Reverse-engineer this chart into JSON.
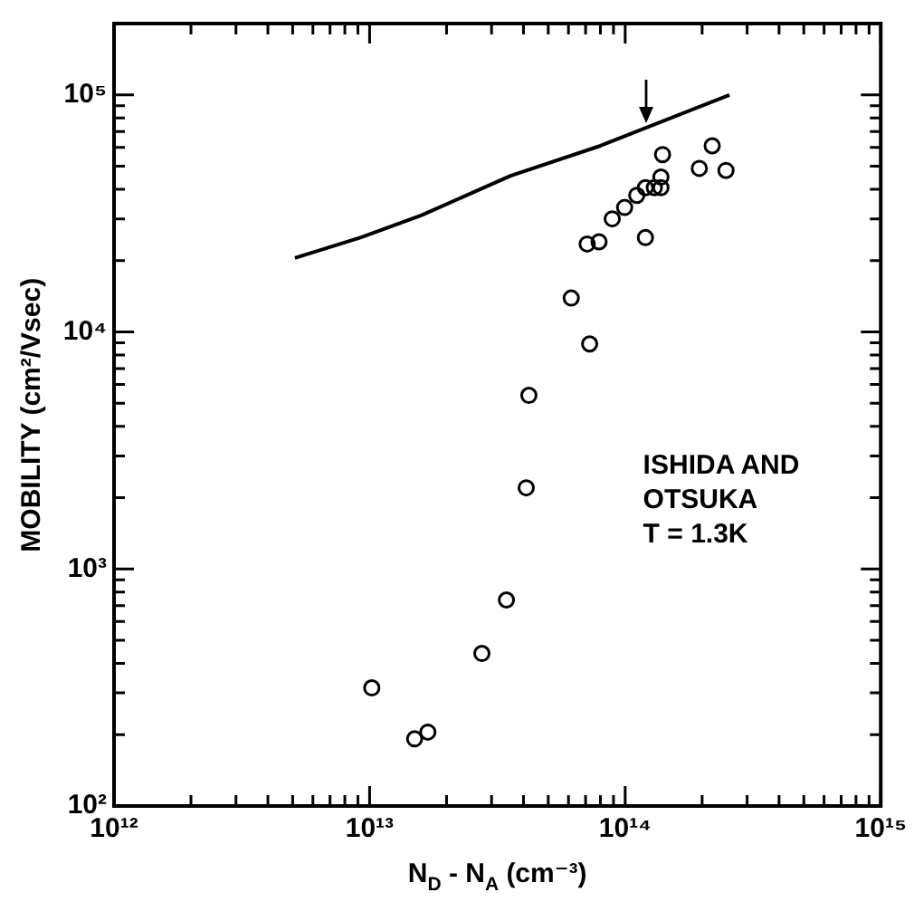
{
  "chart_data": {
    "type": "scatter",
    "xlabel": "N$_{D}$ - N$_{A}$ (cm⁻³)",
    "ylabel": "MOBILITY (cm²/Vsec)",
    "log": "xy",
    "grid": false,
    "legend": false,
    "xlim": [
      1000000000000.0,
      1000000000000000.0
    ],
    "ylim": [
      100,
      200000
    ],
    "xticks": [
      {
        "value": 1000000000000.0,
        "label": "10¹²"
      },
      {
        "value": 2000000000000.0,
        "label": null
      },
      {
        "value": 3000000000000.0,
        "label": null
      },
      {
        "value": 4000000000000.0,
        "label": null
      },
      {
        "value": 5000000000000.0,
        "label": null
      },
      {
        "value": 6000000000000.0,
        "label": null
      },
      {
        "value": 7000000000000.0,
        "label": null
      },
      {
        "value": 8000000000000.0,
        "label": null
      },
      {
        "value": 9000000000000.0,
        "label": null
      },
      {
        "value": 10000000000000.0,
        "label": "10¹³"
      },
      {
        "value": 20000000000000.0,
        "label": null
      },
      {
        "value": 30000000000000.0,
        "label": null
      },
      {
        "value": 40000000000000.0,
        "label": null
      },
      {
        "value": 50000000000000.0,
        "label": null
      },
      {
        "value": 60000000000000.0,
        "label": null
      },
      {
        "value": 70000000000000.0,
        "label": null
      },
      {
        "value": 80000000000000.0,
        "label": null
      },
      {
        "value": 90000000000000.0,
        "label": null
      },
      {
        "value": 100000000000000.0,
        "label": "10¹⁴"
      },
      {
        "value": 200000000000000.0,
        "label": null
      },
      {
        "value": 300000000000000.0,
        "label": null
      },
      {
        "value": 400000000000000.0,
        "label": null
      },
      {
        "value": 500000000000000.0,
        "label": null
      },
      {
        "value": 600000000000000.0,
        "label": null
      },
      {
        "value": 700000000000000.0,
        "label": null
      },
      {
        "value": 800000000000000.0,
        "label": null
      },
      {
        "value": 900000000000000.0,
        "label": null
      },
      {
        "value": 1000000000000000.0,
        "label": "10¹⁵"
      }
    ],
    "yticks": [
      {
        "value": 100,
        "label": "10²"
      },
      {
        "value": 200,
        "label": null
      },
      {
        "value": 300,
        "label": null
      },
      {
        "value": 400,
        "label": null
      },
      {
        "value": 500,
        "label": null
      },
      {
        "value": 600,
        "label": null
      },
      {
        "value": 700,
        "label": null
      },
      {
        "value": 800,
        "label": null
      },
      {
        "value": 900,
        "label": null
      },
      {
        "value": 1000,
        "label": "10³"
      },
      {
        "value": 2000,
        "label": null
      },
      {
        "value": 3000,
        "label": null
      },
      {
        "value": 4000,
        "label": null
      },
      {
        "value": 5000,
        "label": null
      },
      {
        "value": 6000,
        "label": null
      },
      {
        "value": 7000,
        "label": null
      },
      {
        "value": 8000,
        "label": null
      },
      {
        "value": 9000,
        "label": null
      },
      {
        "value": 10000,
        "label": "10⁴"
      },
      {
        "value": 20000,
        "label": null
      },
      {
        "value": 30000,
        "label": null
      },
      {
        "value": 40000,
        "label": null
      },
      {
        "value": 50000,
        "label": null
      },
      {
        "value": 60000,
        "label": null
      },
      {
        "value": 70000,
        "label": null
      },
      {
        "value": 80000,
        "label": null
      },
      {
        "value": 90000,
        "label": null
      },
      {
        "value": 100000,
        "label": "10⁵"
      }
    ],
    "annotations": [
      "ISHIDA AND\nOTSUKA\nT = 1.3K"
    ],
    "series": [
      {
        "type": "line",
        "color": "#000000",
        "marker": "none",
        "x": [
          5100000000000.0,
          9200000000000.0,
          15900000000000.0,
          35600000000000.0,
          80000000000000.0,
          256000000000000.0
        ],
        "values": [
          20500,
          25000,
          31000,
          45600,
          61000,
          100000
        ]
      },
      {
        "color": "#000000",
        "marker": "circle",
        "x": [
          42000000000000.0,
          61500000000000.0,
          72600000000000.0,
          71000000000000.0,
          79000000000000.0,
          89000000000000.0,
          99500000000000.0,
          111000000000000.0,
          120000000000000.0,
          130000000000000.0,
          138000000000000.0,
          138000000000000.0,
          140000000000000.0,
          120000000000000.0,
          195000000000000.0,
          219000000000000.0,
          248000000000000.0,
          41000000000000.0,
          34300000000000.0,
          27500000000000.0,
          10200000000000.0,
          15000000000000.0,
          16900000000000.0
        ],
        "values": [
          5400,
          13900,
          8900,
          23500,
          24000,
          30000,
          33500,
          37700,
          40600,
          40600,
          40600,
          45000,
          56000,
          25000,
          49000,
          61000,
          48000,
          2200,
          740,
          440,
          315,
          192,
          205
        ]
      }
    ]
  }
}
